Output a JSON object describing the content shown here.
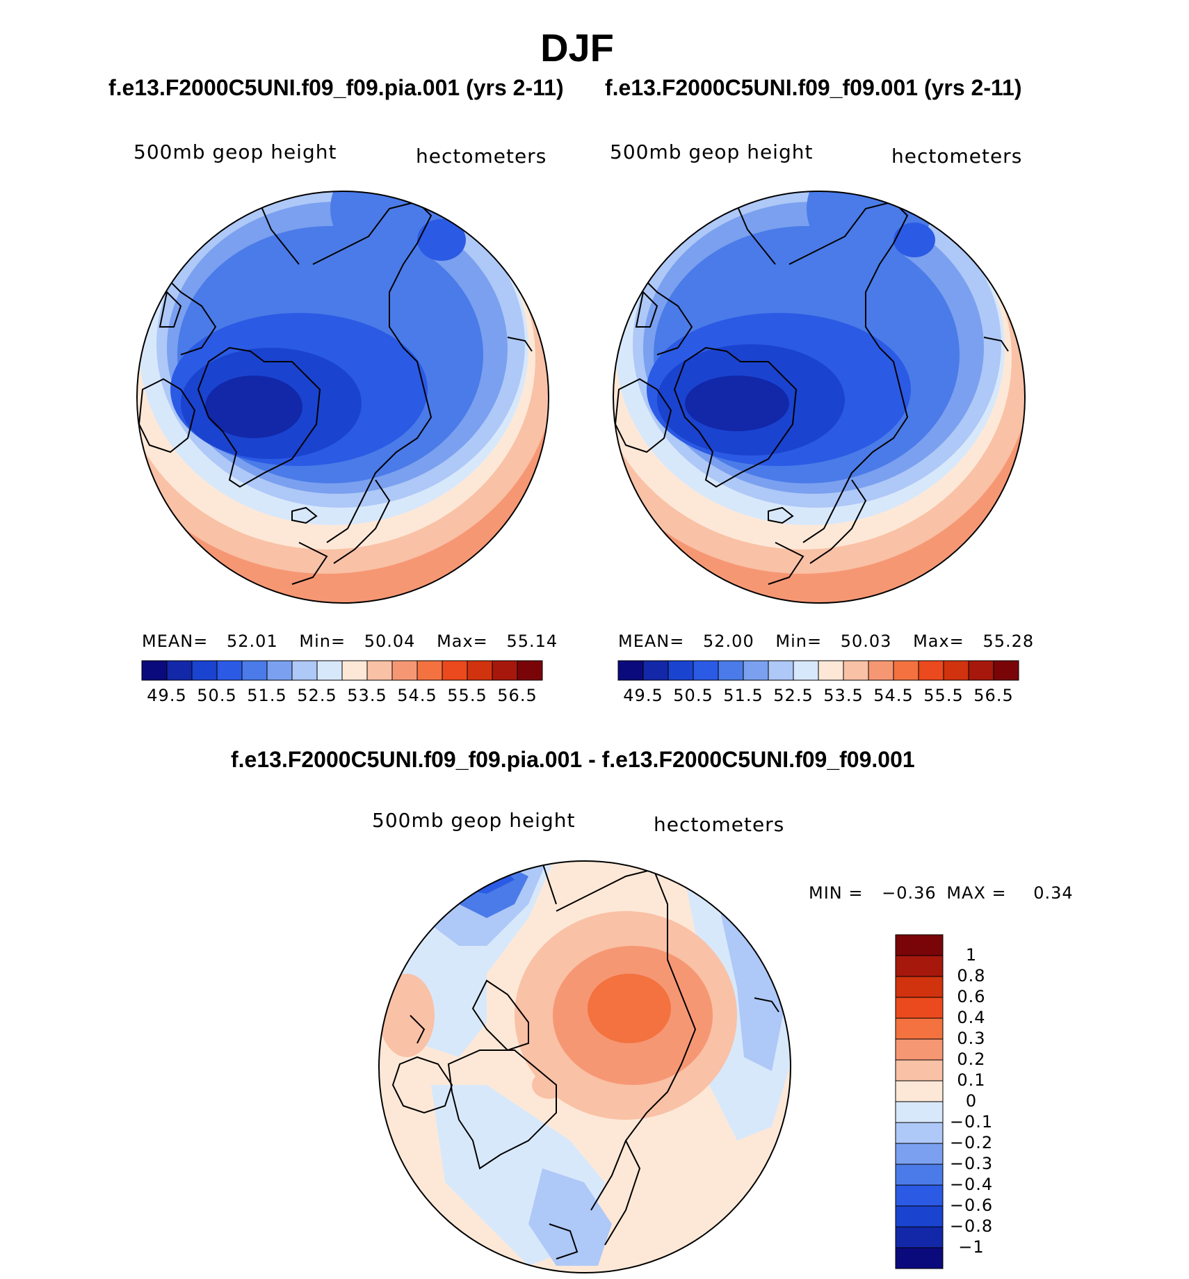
{
  "title": "DJF",
  "panels": [
    {
      "case_title": "f.e13.F2000C5UNI.f09_f09.pia.001 (yrs 2-11)",
      "variable": "500mb geop height",
      "units": "hectometers",
      "stats": {
        "mean_label": "MEAN=",
        "mean": "52.01",
        "min_label": "Min=",
        "min": "50.04",
        "max_label": "Max=",
        "max": "55.14"
      }
    },
    {
      "case_title": "f.e13.F2000C5UNI.f09_f09.001 (yrs 2-11)",
      "variable": "500mb geop height",
      "units": "hectometers",
      "stats": {
        "mean_label": "MEAN=",
        "mean": "52.00",
        "min_label": "Min=",
        "min": "50.03",
        "max_label": "Max=",
        "max": "55.28"
      }
    }
  ],
  "diff_panel": {
    "title": "f.e13.F2000C5UNI.f09_f09.pia.001 - f.e13.F2000C5UNI.f09_f09.001",
    "variable": "500mb geop height",
    "units": "hectometers",
    "stats": {
      "min_label": "MIN =",
      "min": "−0.36",
      "max_label": "MAX =",
      "max": "0.34"
    }
  },
  "colorbar": {
    "colors": [
      "#0b0a7d",
      "#1228a8",
      "#1a43d0",
      "#2b5ae4",
      "#4a7be8",
      "#7aa0ef",
      "#aec8f7",
      "#d8e8fb",
      "#fde8d7",
      "#f9c1a6",
      "#f69774",
      "#f3723f",
      "#ea4a1d",
      "#d0330e",
      "#a6180c",
      "#7a0508"
    ],
    "tick_labels": [
      "49.5",
      "50.5",
      "51.5",
      "52.5",
      "53.5",
      "54.5",
      "55.5",
      "56.5"
    ]
  },
  "diff_colorbar": {
    "colors": [
      "#0b0a7d",
      "#1228a8",
      "#1a43d0",
      "#2b5ae4",
      "#4a7be8",
      "#7aa0ef",
      "#aec8f7",
      "#d8e8fb",
      "#fde8d7",
      "#f9c1a6",
      "#f69774",
      "#f3723f",
      "#ea4a1d",
      "#d0330e",
      "#a6180c",
      "#7a0508"
    ],
    "tick_labels": [
      "1",
      "0.8",
      "0.6",
      "0.4",
      "0.3",
      "0.2",
      "0.1",
      "0",
      "−0.1",
      "−0.2",
      "−0.3",
      "−0.4",
      "−0.6",
      "−0.8",
      "−1"
    ]
  }
}
